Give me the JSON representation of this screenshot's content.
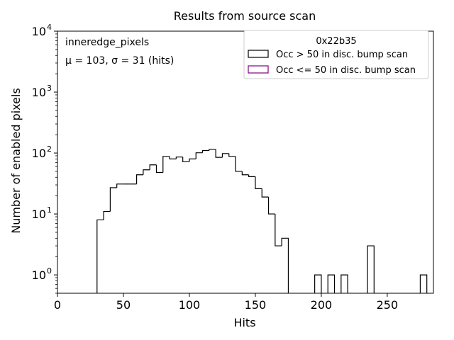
{
  "chart_data": {
    "type": "histogram",
    "title": "Results from source scan",
    "xlabel": "Hits",
    "ylabel": "Number of enabled pixels",
    "yscale": "log",
    "xlim": [
      0,
      285
    ],
    "ylim": [
      0.5,
      10000
    ],
    "x_ticks": [
      0,
      50,
      100,
      150,
      200,
      250
    ],
    "y_ticks": [
      1,
      10,
      100,
      1000,
      10000
    ],
    "y_tick_labels": [
      "10",
      "10",
      "10",
      "10",
      "10"
    ],
    "y_tick_exponents": [
      "0",
      "1",
      "2",
      "3",
      "4"
    ],
    "bin_width": 5,
    "bins_start": [
      30,
      35,
      40,
      45,
      50,
      55,
      60,
      65,
      70,
      75,
      80,
      85,
      90,
      95,
      100,
      105,
      110,
      115,
      120,
      125,
      130,
      135,
      140,
      145,
      150,
      155,
      160,
      165,
      170,
      195,
      205,
      215,
      235,
      275
    ],
    "counts": [
      8,
      11,
      27,
      31,
      31,
      31,
      44,
      53,
      64,
      48,
      88,
      80,
      86,
      72,
      80,
      101,
      110,
      115,
      85,
      98,
      88,
      50,
      44,
      41,
      26,
      19,
      10,
      3,
      4,
      1,
      1,
      1,
      3,
      1
    ],
    "annotations": {
      "name": "inneredge_pixels",
      "stats": "μ = 103, σ = 31 (hits)"
    },
    "legend": {
      "title": "0x22b35",
      "placement": "top-right",
      "entries": [
        {
          "label": "Occ > 50 in disc. bump scan",
          "color": "#000000"
        },
        {
          "label": "Occ <= 50 in disc. bump scan",
          "color": "#800080"
        }
      ]
    }
  }
}
